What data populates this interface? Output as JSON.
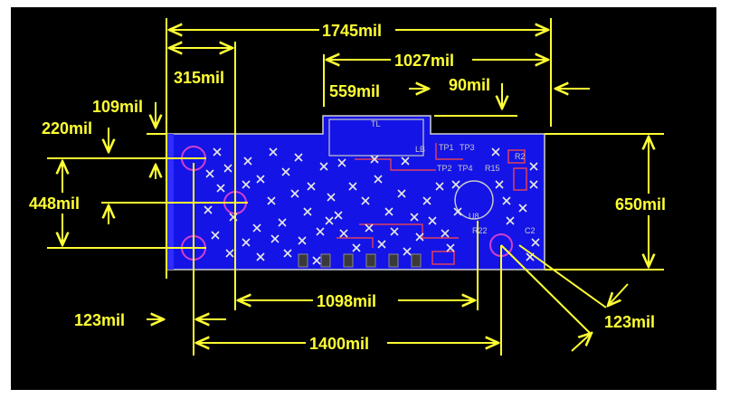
{
  "colors": {
    "background": "#000000",
    "board": "#1414e6",
    "dimension": "#ffff33",
    "outline": "#cfcfcf",
    "marker": "#e8e8e8",
    "trace": "#e0405a"
  },
  "dimensions": {
    "overall_width": "1745mil",
    "span_right": "1027mil",
    "bump_width": "559mil",
    "bump_offset": "90mil",
    "hole_offset_x": "315mil",
    "top_offset": "109mil",
    "hole_top_y": "220mil",
    "hole_spacing_y": "448mil",
    "board_height": "650mil",
    "left_edge_offset": "123mil",
    "center_span": "1098mil",
    "bottom_span": "1400mil",
    "corner_offset": "123mil"
  },
  "components": {
    "connector": "TL",
    "tp1": "TP1",
    "tp3": "TP3",
    "tp2": "TP2",
    "tp4": "TP4",
    "r15": "R15",
    "r22": "R22",
    "u8": "U8",
    "lb": "LB",
    "c2": "C2",
    "r2": "R2"
  }
}
